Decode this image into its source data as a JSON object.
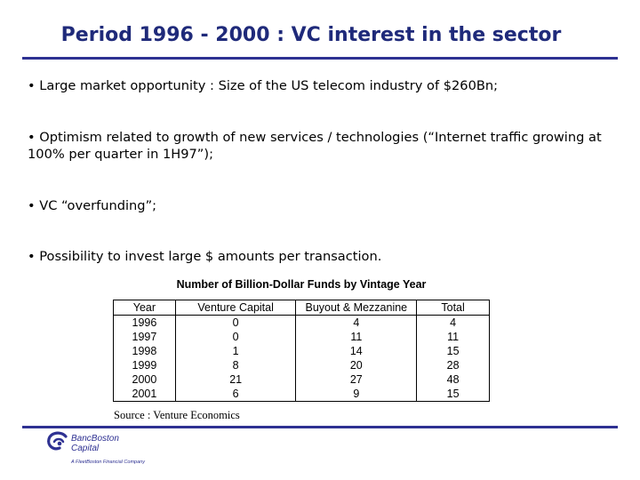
{
  "slide": {
    "title": "Period 1996 - 2000 : VC interest in the sector",
    "bullets": [
      "• Large market opportunity : Size of the US telecom industry of $260Bn;",
      "• Optimism related to growth of new services / technologies (“Internet traffic growing at 100% per quarter in 1H97”);",
      "• VC “overfunding”;",
      "• Possibility to invest large $ amounts per transaction."
    ]
  },
  "table": {
    "title": "Number of Billion-Dollar Funds by Vintage Year",
    "headers": [
      "Year",
      "Venture Capital",
      "Buyout & Mezzanine",
      "Total"
    ],
    "rows": [
      [
        "1996",
        "0",
        "4",
        "4"
      ],
      [
        "1997",
        "0",
        "11",
        "11"
      ],
      [
        "1998",
        "1",
        "14",
        "15"
      ],
      [
        "1999",
        "8",
        "20",
        "28"
      ],
      [
        "2000",
        "21",
        "27",
        "48"
      ],
      [
        "2001",
        "6",
        "9",
        "15"
      ]
    ],
    "source": "Source : Venture Economics"
  },
  "logo": {
    "line1": "BancBoston",
    "line2": "Capital",
    "tagline": "A FleetBoston Financial Company"
  },
  "colors": {
    "title": "#1f2a7a",
    "rule": "#2e3192",
    "logo": "#2e3192"
  }
}
